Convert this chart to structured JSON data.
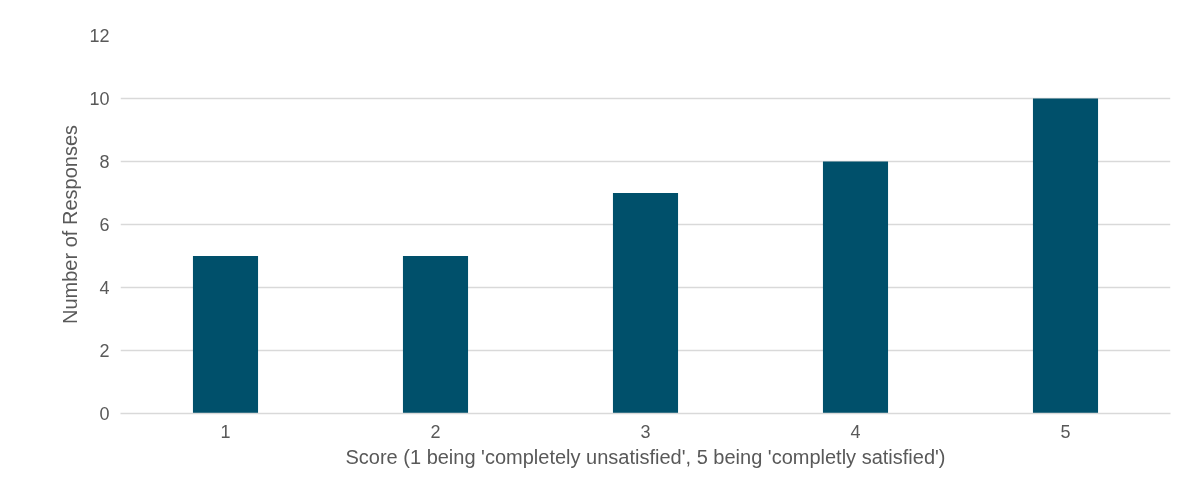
{
  "chart_data": {
    "type": "bar",
    "xlabel": "Score (1 being 'completely unsatisfied', 5 being 'completly satisfied')",
    "ylabel": "Number of Responses",
    "categories": [
      "1",
      "2",
      "3",
      "4",
      "5"
    ],
    "series": [
      {
        "color": "#00506b",
        "values": [
          5,
          5,
          7,
          8,
          10
        ]
      }
    ],
    "ylim": [
      0,
      12
    ],
    "yticks": [
      0,
      2,
      4,
      6,
      8,
      10,
      12
    ],
    "grid": "y"
  }
}
